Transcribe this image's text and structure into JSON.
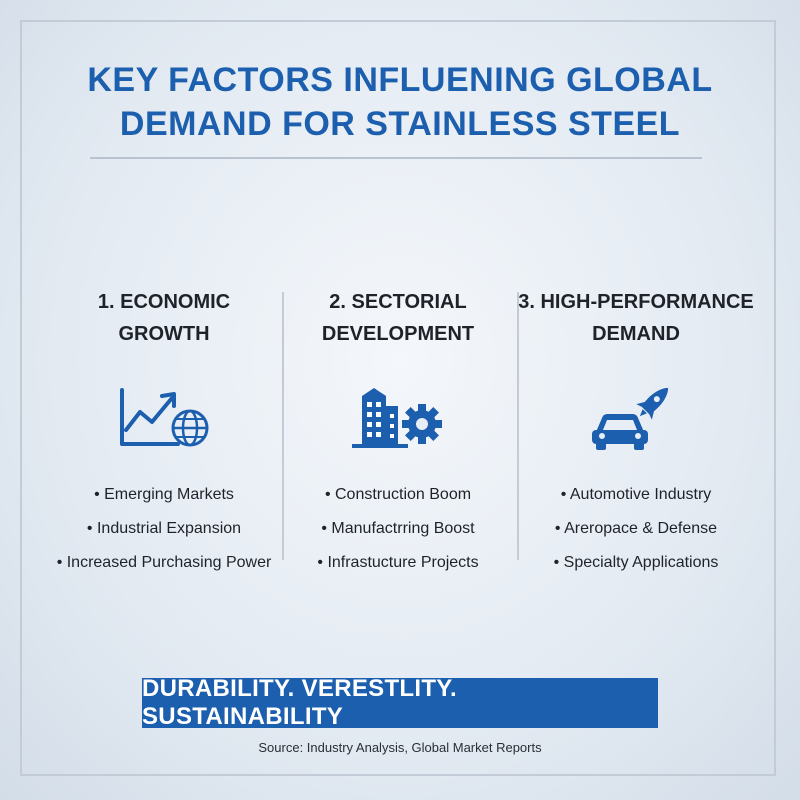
{
  "title_line1": "KEY FACTORS INFLUENING GLOBAL",
  "title_line2": "DEMAND FOR STAINLESS STEEL",
  "columns": [
    {
      "heading_line1": "1. ECONOMIC",
      "heading_line2": "GROWTH",
      "icon": "growth-chart-globe-icon",
      "bullets": [
        "Emerging Markets",
        "Industrial Expansion",
        "Increased Purchasing Power"
      ]
    },
    {
      "heading_line1": "2. SECTORIAL",
      "heading_line2": "DEVELOPMENT",
      "icon": "building-gear-icon",
      "bullets": [
        "Construction Boom",
        "Manufactrring Boost",
        "Infrastucture Projects"
      ]
    },
    {
      "heading_line1": "3. HIGH-PERFORMANCE",
      "heading_line2": "DEMAND",
      "icon": "car-rocket-icon",
      "bullets": [
        "Automotive Industry",
        "Areropace & Defense",
        "Specialty Applications"
      ]
    }
  ],
  "banner": "DURABILITY. VERESTLITY. SUSTAINABILITY",
  "source": "Source: Industry Analysis, Global Market Reports",
  "colors": {
    "accent": "#1c5fae",
    "text": "#1f2329"
  }
}
